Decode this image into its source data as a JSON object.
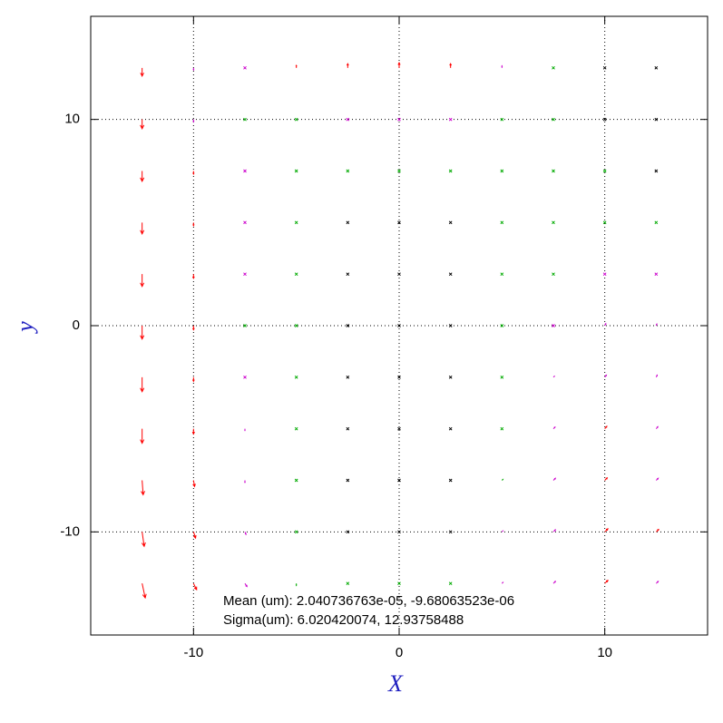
{
  "chart_data": {
    "type": "quiver",
    "xlabel": "X",
    "ylabel": "y",
    "annotations": [
      "Mean (um): 2.040736763e-05, -9.68063523e-06",
      "Sigma(um): 6.020420074, 12.93758488"
    ],
    "xlim": [
      -15,
      15
    ],
    "ylim": [
      -15,
      15
    ],
    "xticks": [
      -10,
      0,
      10
    ],
    "yticks": [
      -10,
      0,
      10
    ],
    "grid": true,
    "x": [
      -12.5,
      -10,
      -7.5,
      -5,
      -2.5,
      0,
      2.5,
      5,
      7.5,
      10,
      12.5
    ],
    "y": [
      -12.5,
      -10,
      -7.5,
      -5,
      -2.5,
      0,
      2.5,
      5,
      7.5,
      10,
      12.5
    ],
    "u": [
      [
        0.15,
        0.15,
        0.1,
        0,
        0,
        0,
        0.05,
        0.05,
        0.1,
        0.15,
        0.1
      ],
      [
        0.1,
        0.1,
        0.05,
        0,
        0,
        0,
        0.03,
        0.05,
        0.1,
        0.15,
        0.12
      ],
      [
        0.05,
        0.05,
        0,
        0,
        0,
        0,
        0,
        0.05,
        0.1,
        0.12,
        0.1
      ],
      [
        0,
        0,
        0,
        0,
        0,
        0,
        0,
        0.03,
        0.08,
        0.1,
        0.08
      ],
      [
        0,
        0,
        0,
        0,
        0,
        0,
        0,
        0.02,
        0.05,
        0.08,
        0.05
      ],
      [
        0,
        0,
        0,
        0,
        0,
        0,
        0,
        0.01,
        0.03,
        0.05,
        0.03
      ],
      [
        0,
        0,
        0,
        0,
        0,
        0,
        0,
        0.01,
        0.02,
        0.03,
        0.02
      ],
      [
        0,
        0,
        0,
        0,
        0,
        0,
        0,
        0,
        0.01,
        0.02,
        0.01
      ],
      [
        0,
        0,
        0,
        0,
        0,
        0,
        0,
        0,
        0,
        0,
        0
      ],
      [
        0,
        0,
        0,
        0,
        0,
        0,
        0,
        0,
        0,
        0,
        0
      ],
      [
        0,
        0,
        0,
        0,
        0,
        0,
        0,
        0,
        0,
        0,
        0
      ]
    ],
    "v": [
      [
        -0.7,
        -0.3,
        -0.15,
        -0.1,
        -0.05,
        -0.05,
        0,
        0.05,
        0.1,
        0.15,
        0.1
      ],
      [
        -0.7,
        -0.3,
        -0.12,
        -0.05,
        -0.03,
        -0.02,
        0.02,
        0.05,
        0.1,
        0.15,
        0.12
      ],
      [
        -0.7,
        -0.3,
        -0.1,
        -0.05,
        0,
        0,
        0,
        0.05,
        0.1,
        0.12,
        0.1
      ],
      [
        -0.7,
        -0.25,
        -0.08,
        -0.03,
        0,
        0,
        0,
        0.03,
        0.08,
        0.12,
        0.1
      ],
      [
        -0.7,
        -0.2,
        -0.05,
        -0.02,
        0,
        0,
        0,
        0.02,
        0.05,
        0.1,
        0.1
      ],
      [
        -0.65,
        -0.2,
        -0.05,
        -0.02,
        0,
        0,
        0,
        0.01,
        0.05,
        0.1,
        0.08
      ],
      [
        -0.6,
        -0.2,
        -0.05,
        -0.02,
        0,
        0,
        0,
        0.01,
        0.03,
        0.05,
        0.05
      ],
      [
        -0.55,
        -0.15,
        -0.05,
        -0.02,
        0,
        0,
        0,
        0,
        0.02,
        0.03,
        0.03
      ],
      [
        -0.5,
        -0.15,
        -0.05,
        -0.02,
        0.02,
        0.02,
        0.01,
        0,
        0,
        0,
        0
      ],
      [
        -0.45,
        -0.12,
        -0.03,
        0.02,
        0.05,
        0.05,
        0.04,
        0.02,
        0,
        0,
        0
      ],
      [
        -0.4,
        -0.1,
        0.05,
        0.12,
        0.2,
        0.25,
        0.2,
        0.1,
        0.05,
        0,
        0
      ]
    ],
    "colors": [
      [
        "#ff0000",
        "#ff0000",
        "#cc00cc",
        "#00aa00",
        "#00aa00",
        "#00aa00",
        "#00aa00",
        "#cc00cc",
        "#cc00cc",
        "#ff0000",
        "#cc00cc"
      ],
      [
        "#ff0000",
        "#ff0000",
        "#cc00cc",
        "#00aa00",
        "#000000",
        "#000000",
        "#000000",
        "#cc00cc",
        "#cc00cc",
        "#ff0000",
        "#ff0000"
      ],
      [
        "#ff0000",
        "#ff0000",
        "#cc00cc",
        "#00aa00",
        "#000000",
        "#000000",
        "#000000",
        "#00aa00",
        "#cc00cc",
        "#ff0000",
        "#cc00cc"
      ],
      [
        "#ff0000",
        "#ff0000",
        "#cc00cc",
        "#00aa00",
        "#000000",
        "#000000",
        "#000000",
        "#00aa00",
        "#cc00cc",
        "#ff0000",
        "#cc00cc"
      ],
      [
        "#ff0000",
        "#ff0000",
        "#cc00cc",
        "#00aa00",
        "#000000",
        "#000000",
        "#000000",
        "#00aa00",
        "#cc00cc",
        "#cc00cc",
        "#cc00cc"
      ],
      [
        "#ff0000",
        "#ff0000",
        "#00aa00",
        "#00aa00",
        "#000000",
        "#000000",
        "#000000",
        "#00aa00",
        "#cc00cc",
        "#cc00cc",
        "#cc00cc"
      ],
      [
        "#ff0000",
        "#ff0000",
        "#cc00cc",
        "#00aa00",
        "#000000",
        "#000000",
        "#000000",
        "#00aa00",
        "#00aa00",
        "#cc00cc",
        "#cc00cc"
      ],
      [
        "#ff0000",
        "#ff0000",
        "#cc00cc",
        "#00aa00",
        "#000000",
        "#000000",
        "#000000",
        "#00aa00",
        "#00aa00",
        "#00aa00",
        "#00aa00"
      ],
      [
        "#ff0000",
        "#ff0000",
        "#cc00cc",
        "#00aa00",
        "#00aa00",
        "#00aa00",
        "#00aa00",
        "#00aa00",
        "#00aa00",
        "#00aa00",
        "#000000"
      ],
      [
        "#ff0000",
        "#cc00cc",
        "#00aa00",
        "#00aa00",
        "#cc00cc",
        "#cc00cc",
        "#cc00cc",
        "#00aa00",
        "#00aa00",
        "#000000",
        "#000000"
      ],
      [
        "#ff0000",
        "#cc00cc",
        "#cc00cc",
        "#ff0000",
        "#ff0000",
        "#ff0000",
        "#ff0000",
        "#cc00cc",
        "#00aa00",
        "#000000",
        "#000000"
      ]
    ]
  }
}
